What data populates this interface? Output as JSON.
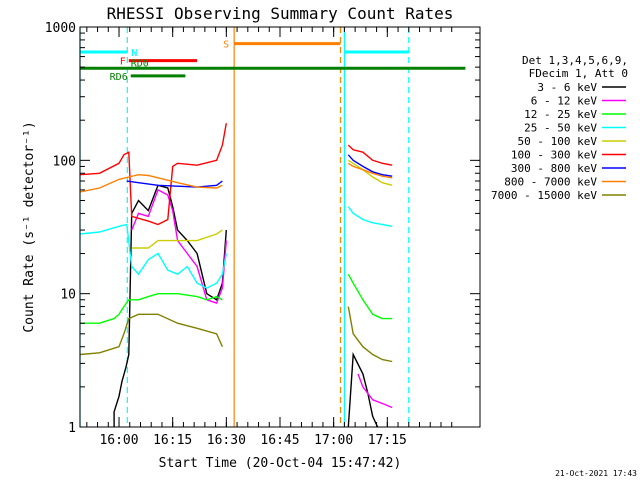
{
  "chart_data": {
    "type": "line",
    "title": "RHESSI Observing Summary Count Rates",
    "ylabel": "Count Rate (s⁻¹ detector⁻¹)",
    "xlabel": "Start Time (20-Oct-04 15:47:42)",
    "footer_date": "21-Oct-2021 17:43",
    "yscale": "log",
    "ylim": [
      1,
      1000
    ],
    "xlim_minutes": [
      -4,
      37
    ],
    "y_ticks": [
      {
        "value": 1,
        "label": "1"
      },
      {
        "value": 10,
        "label": "10"
      },
      {
        "value": 100,
        "label": "100"
      },
      {
        "value": 1000,
        "label": "1000"
      }
    ],
    "x_ticks": [
      {
        "value": 0,
        "label": "16:00"
      },
      {
        "value": 5.5,
        "label": "16:15"
      },
      {
        "value": 11,
        "label": "16:30"
      },
      {
        "value": 16.5,
        "label": "16:45"
      },
      {
        "value": 22,
        "label": "17:00"
      },
      {
        "value": 27.5,
        "label": "17:15"
      }
    ],
    "legend": {
      "header": [
        "Det 1,3,4,5,6,9,",
        "FDecim 1, Att 0"
      ],
      "placement": "right"
    },
    "series": [
      {
        "name": "3 - 6 keV",
        "color": "#000000",
        "segments": [
          [
            [
              -0.5,
              1.0
            ],
            [
              -0.5,
              1.3
            ],
            [
              0,
              1.7
            ],
            [
              0.3,
              2.2
            ],
            [
              0.7,
              2.8
            ],
            [
              1,
              3.5
            ],
            [
              1.3,
              40
            ],
            [
              2,
              50
            ],
            [
              3,
              42
            ],
            [
              4,
              65
            ],
            [
              5,
              62
            ],
            [
              5.5,
              45
            ],
            [
              6,
              30
            ],
            [
              7,
              25
            ],
            [
              8,
              20
            ],
            [
              9,
              10
            ],
            [
              10,
              9
            ],
            [
              10.6,
              12
            ],
            [
              11,
              30
            ]
          ],
          [
            [
              23.5,
              1.0
            ],
            [
              24,
              3.5
            ],
            [
              25,
              2.5
            ],
            [
              25.5,
              1.8
            ],
            [
              26,
              1.2
            ],
            [
              26.5,
              1.0
            ]
          ]
        ]
      },
      {
        "name": "6 - 12 keV",
        "color": "#ff00ff",
        "segments": [
          [
            [
              1.3,
              30
            ],
            [
              2,
              40
            ],
            [
              3,
              38
            ],
            [
              4,
              60
            ],
            [
              5,
              55
            ],
            [
              5.5,
              42
            ],
            [
              6,
              25
            ],
            [
              7,
              20
            ],
            [
              8,
              16
            ],
            [
              9,
              9
            ],
            [
              10,
              8.5
            ],
            [
              10.6,
              11
            ],
            [
              11,
              25
            ]
          ],
          [
            [
              24.5,
              2.5
            ],
            [
              25,
              2.0
            ],
            [
              26,
              1.6
            ],
            [
              27,
              1.5
            ],
            [
              28,
              1.4
            ]
          ]
        ]
      },
      {
        "name": "12 - 25 keV",
        "color": "#00ff00",
        "segments": [
          [
            [
              -4,
              6
            ],
            [
              -2,
              6
            ],
            [
              -0.5,
              6.5
            ],
            [
              0,
              7
            ],
            [
              0.5,
              8
            ],
            [
              1,
              9
            ],
            [
              2,
              9
            ],
            [
              3,
              9.5
            ],
            [
              4,
              10
            ],
            [
              6,
              10
            ],
            [
              8,
              9.5
            ],
            [
              9,
              9
            ],
            [
              10,
              9.5
            ],
            [
              10.6,
              9
            ]
          ],
          [
            [
              23.5,
              14
            ],
            [
              24,
              12
            ],
            [
              25,
              9
            ],
            [
              26,
              7
            ],
            [
              27,
              6.5
            ],
            [
              28,
              6.5
            ]
          ]
        ]
      },
      {
        "name": "25 - 50 keV",
        "color": "#00ffff",
        "segments": [
          [
            [
              -4,
              28
            ],
            [
              -2,
              29
            ],
            [
              0,
              32
            ],
            [
              0.8,
              33
            ],
            [
              1.3,
              16
            ],
            [
              2,
              14
            ],
            [
              3,
              18
            ],
            [
              4,
              20
            ],
            [
              5,
              15
            ],
            [
              6,
              14
            ],
            [
              7,
              16
            ],
            [
              8,
              12
            ],
            [
              9,
              11
            ],
            [
              10,
              12
            ],
            [
              10.6,
              14
            ],
            [
              11,
              20
            ]
          ],
          [
            [
              23.5,
              45
            ],
            [
              24,
              40
            ],
            [
              25,
              36
            ],
            [
              26,
              34
            ],
            [
              27,
              33
            ],
            [
              28,
              32
            ]
          ]
        ]
      },
      {
        "name": "50 - 100 keV",
        "color": "#cccc00",
        "segments": [
          [
            [
              1.3,
              22
            ],
            [
              3,
              22
            ],
            [
              4,
              25
            ],
            [
              6,
              25
            ],
            [
              8,
              25
            ],
            [
              10,
              28
            ],
            [
              10.6,
              30
            ]
          ],
          [
            [
              23.5,
              100
            ],
            [
              24,
              95
            ],
            [
              25,
              85
            ],
            [
              26,
              75
            ],
            [
              27,
              68
            ],
            [
              28,
              65
            ]
          ]
        ]
      },
      {
        "name": "100 - 300 keV",
        "color": "#ff0000",
        "segments": [
          [
            [
              -4,
              78
            ],
            [
              -2,
              80
            ],
            [
              0,
              95
            ],
            [
              0.5,
              110
            ],
            [
              1,
              115
            ],
            [
              1.3,
              38
            ],
            [
              3,
              35
            ],
            [
              4,
              33
            ],
            [
              5,
              36
            ],
            [
              5.5,
              90
            ],
            [
              6,
              95
            ],
            [
              8,
              92
            ],
            [
              10,
              100
            ],
            [
              10.6,
              130
            ],
            [
              11,
              190
            ]
          ],
          [
            [
              23.5,
              130
            ],
            [
              24,
              120
            ],
            [
              25,
              115
            ],
            [
              26,
              100
            ],
            [
              27,
              95
            ],
            [
              28,
              92
            ]
          ]
        ]
      },
      {
        "name": "300 - 800 keV",
        "color": "#0000ff",
        "segments": [
          [
            [
              0.8,
              70
            ],
            [
              2,
              68
            ],
            [
              4,
              65
            ],
            [
              6,
              64
            ],
            [
              8,
              63
            ],
            [
              10,
              65
            ],
            [
              10.6,
              70
            ]
          ],
          [
            [
              23.5,
              110
            ],
            [
              24,
              100
            ],
            [
              25,
              90
            ],
            [
              26,
              82
            ],
            [
              27,
              78
            ],
            [
              28,
              76
            ]
          ]
        ]
      },
      {
        "name": "800 - 7000 keV",
        "color": "#ff8000",
        "segments": [
          [
            [
              -4,
              58
            ],
            [
              -2,
              62
            ],
            [
              0,
              72
            ],
            [
              1,
              75
            ],
            [
              2,
              78
            ],
            [
              3,
              77
            ],
            [
              4,
              74
            ],
            [
              6,
              68
            ],
            [
              8,
              63
            ],
            [
              10,
              62
            ],
            [
              10.6,
              65
            ]
          ],
          [
            [
              23.5,
              95
            ],
            [
              24,
              90
            ],
            [
              25,
              85
            ],
            [
              26,
              80
            ],
            [
              27,
              76
            ],
            [
              28,
              74
            ]
          ]
        ]
      },
      {
        "name": "7000 - 15000 keV",
        "color": "#808000",
        "segments": [
          [
            [
              -4,
              3.5
            ],
            [
              -2,
              3.6
            ],
            [
              0,
              4
            ],
            [
              0.5,
              5
            ],
            [
              1,
              6.5
            ],
            [
              2,
              7
            ],
            [
              4,
              7
            ],
            [
              6,
              6
            ],
            [
              8,
              5.5
            ],
            [
              10,
              5
            ],
            [
              10.6,
              4
            ]
          ],
          [
            [
              23.5,
              8
            ],
            [
              24,
              5
            ],
            [
              25,
              4
            ],
            [
              26,
              3.5
            ],
            [
              27,
              3.2
            ],
            [
              28,
              3.1
            ]
          ]
        ]
      }
    ],
    "annotations": {
      "labels": [
        "N",
        "F",
        "RD0",
        "RD6",
        "S"
      ],
      "vertical_lines": [
        {
          "x": -4,
          "color": "#00ffff",
          "style": "solid"
        },
        {
          "x": 0.85,
          "color": "#00ffff",
          "style": "dashed"
        },
        {
          "x": 11.8,
          "color": "#ff8000",
          "style": "solid"
        },
        {
          "x": 22.7,
          "color": "#ff8000",
          "style": "dashed"
        },
        {
          "x": 23.1,
          "color": "#00ffff",
          "style": "solid"
        },
        {
          "x": 29.7,
          "color": "#00ffff",
          "style": "dashed"
        }
      ],
      "bars": [
        {
          "label": "N",
          "color": "#00ffff",
          "level": 650,
          "x_start": -4,
          "x_end": 0.85
        },
        {
          "label": "",
          "color": "#00ffff",
          "level": 650,
          "x_start": 23.1,
          "x_end": 29.7
        },
        {
          "label": "F",
          "color": "#ff0000",
          "level": 560,
          "x_start": 1.0,
          "x_end": 8.0
        },
        {
          "label": "RD0",
          "color": "#008000",
          "level": 490,
          "x_start": -4,
          "x_end": 35.5
        },
        {
          "label": "RD6",
          "color": "#008000",
          "level": 430,
          "x_start": 1.2,
          "x_end": 6.8
        },
        {
          "label": "S",
          "color": "#ff8000",
          "level": 750,
          "x_start": 11.8,
          "x_end": 22.7
        }
      ]
    }
  }
}
